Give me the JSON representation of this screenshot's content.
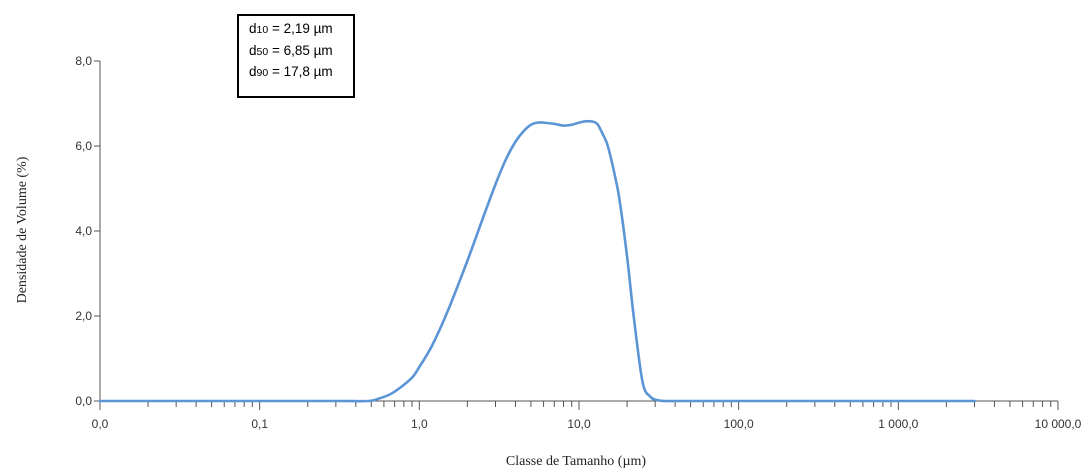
{
  "stats_box": {
    "lines": [
      {
        "prefix": "d",
        "sub": "10",
        "text": " = 2,19 µm"
      },
      {
        "prefix": "d",
        "sub": "50",
        "text": " = 6,85 µm"
      },
      {
        "prefix": "d",
        "sub": "90",
        "text": " = 17,8 µm"
      }
    ]
  },
  "chart_data": {
    "type": "line",
    "title": "",
    "xlabel": "Classe de Tamanho (µm)",
    "ylabel": "Densidade de Volume (%)",
    "xscale": "log",
    "xlim": [
      0.01,
      10000
    ],
    "ylim": [
      0,
      8
    ],
    "grid": false,
    "legend": "none",
    "x_ticks": [
      0.01,
      0.1,
      1,
      10,
      100,
      1000,
      10000
    ],
    "x_tick_labels": [
      "0,0",
      "0,1",
      "1,0",
      "10,0",
      "100,0",
      "1 000,0",
      "10 000,0"
    ],
    "y_ticks": [
      0,
      2,
      4,
      6,
      8
    ],
    "y_tick_labels": [
      "0,0",
      "2,0",
      "4,0",
      "6,0",
      "8,0"
    ],
    "line_color": "#5b95d6",
    "axis_color": "#555555",
    "series": [
      {
        "x": [
          0.01,
          0.1,
          0.3,
          0.48,
          0.55,
          0.65,
          0.75,
          0.9,
          1.0,
          1.2,
          1.5,
          2.0,
          2.5,
          3.0,
          3.5,
          4.0,
          4.5,
          5.0,
          5.5,
          6.0,
          7.0,
          8.0,
          9.0,
          10.0,
          11.0,
          12.0,
          13.0,
          14.0,
          15.0,
          16.0,
          17.0,
          18.0,
          20.0,
          22.0,
          25.0,
          28.0,
          31.0,
          34.0,
          40.0,
          100.0,
          1000.0,
          3000.0
        ],
        "y": [
          0.0,
          0.0,
          0.0,
          0.0,
          0.05,
          0.15,
          0.3,
          0.55,
          0.8,
          1.3,
          2.1,
          3.3,
          4.3,
          5.1,
          5.7,
          6.1,
          6.35,
          6.5,
          6.55,
          6.55,
          6.52,
          6.48,
          6.5,
          6.55,
          6.58,
          6.58,
          6.52,
          6.3,
          6.05,
          5.65,
          5.2,
          4.7,
          3.4,
          2.0,
          0.45,
          0.1,
          0.02,
          0.0,
          0.0,
          0.0,
          0.0,
          0.0
        ]
      }
    ]
  }
}
